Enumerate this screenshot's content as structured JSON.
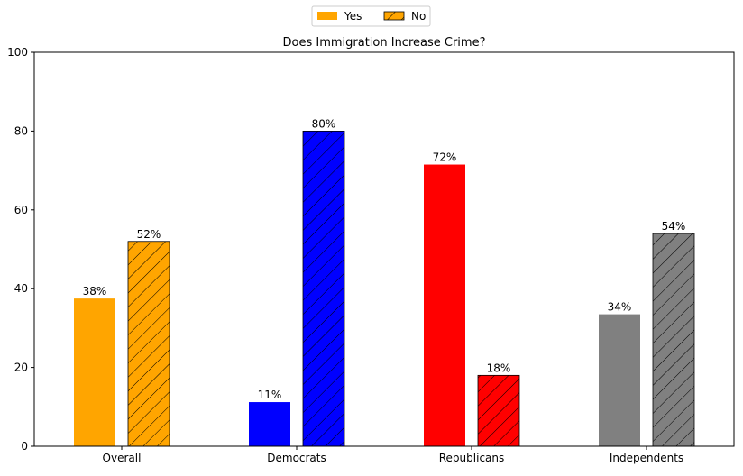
{
  "chart_data": {
    "type": "bar",
    "title": "Does Immigration Increase Crime?",
    "xlabel": "",
    "ylabel": "",
    "ylim": [
      0,
      100
    ],
    "yticks": [
      0,
      20,
      40,
      60,
      80,
      100
    ],
    "categories": [
      "Overall",
      "Democrats",
      "Republicans",
      "Independents"
    ],
    "colors": [
      "#FFA500",
      "#0000FF",
      "#FF0000",
      "#808080"
    ],
    "legend_position": "top-center",
    "series": [
      {
        "name": "Yes",
        "hatch": false,
        "values": [
          37.5,
          11.2,
          71.5,
          33.5
        ],
        "labels": [
          "38%",
          "11%",
          "72%",
          "34%"
        ]
      },
      {
        "name": "No",
        "hatch": true,
        "values": [
          52,
          80,
          18,
          54
        ],
        "labels": [
          "52%",
          "80%",
          "18%",
          "54%"
        ]
      }
    ]
  }
}
